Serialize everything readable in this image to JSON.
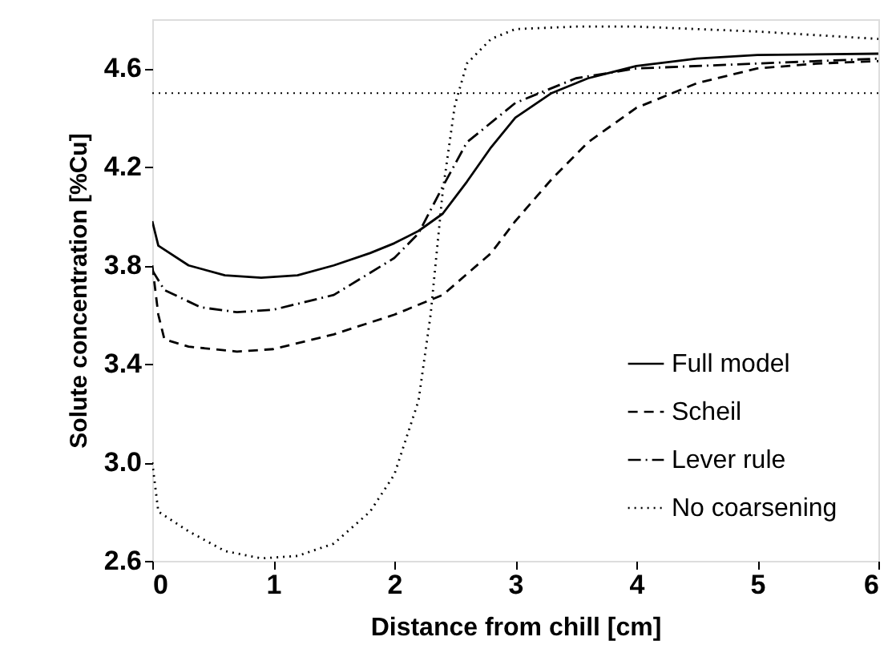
{
  "chart_data": {
    "type": "line",
    "xlabel": "Distance from chill  [cm]",
    "ylabel": "Solute concentration [%Cu]",
    "xlim": [
      0,
      6
    ],
    "xticks": [
      0,
      1,
      2,
      3,
      4,
      5,
      6
    ],
    "ylim": [
      2.6,
      4.8
    ],
    "yticks": [
      2.6,
      {
        "value": 3.0,
        "label": "3.0"
      },
      3.4,
      3.8,
      4.2,
      4.6
    ],
    "legend": "bottom right",
    "grid": false,
    "ref_lines": [
      {
        "axis": "y",
        "value": 4.5,
        "line_style": "dotted",
        "color": "#000000"
      }
    ],
    "series": [
      {
        "name": "Full model",
        "color": "#000000",
        "line_style": "solid",
        "x": [
          0,
          0.05,
          0.3,
          0.6,
          0.9,
          1.2,
          1.5,
          1.8,
          2.0,
          2.2,
          2.4,
          2.6,
          2.8,
          3.0,
          3.3,
          3.6,
          4.0,
          4.5,
          5.0,
          6.0
        ],
        "values": [
          3.98,
          3.88,
          3.8,
          3.76,
          3.75,
          3.76,
          3.8,
          3.85,
          3.89,
          3.94,
          4.01,
          4.14,
          4.28,
          4.4,
          4.5,
          4.56,
          4.61,
          4.64,
          4.655,
          4.66
        ]
      },
      {
        "name": "Scheil",
        "color": "#000000",
        "line_style": "dashed",
        "x": [
          0,
          0.05,
          0.1,
          0.3,
          0.7,
          1.0,
          1.5,
          2.0,
          2.4,
          2.8,
          3.0,
          3.3,
          3.6,
          4.0,
          4.5,
          5.0,
          5.5,
          6.0
        ],
        "values": [
          3.8,
          3.6,
          3.5,
          3.47,
          3.45,
          3.46,
          3.52,
          3.6,
          3.68,
          3.85,
          3.98,
          4.15,
          4.3,
          4.44,
          4.54,
          4.6,
          4.62,
          4.63
        ]
      },
      {
        "name": "Lever rule",
        "color": "#000000",
        "line_style": "dashdot",
        "x": [
          0,
          0.1,
          0.4,
          0.7,
          1.0,
          1.5,
          2.0,
          2.2,
          2.4,
          2.6,
          3.0,
          3.5,
          4.0,
          5.0,
          6.0
        ],
        "values": [
          3.78,
          3.7,
          3.63,
          3.61,
          3.62,
          3.68,
          3.83,
          3.93,
          4.12,
          4.3,
          4.46,
          4.56,
          4.6,
          4.62,
          4.64
        ]
      },
      {
        "name": "No coarsening",
        "color": "#000000",
        "line_style": "dotted",
        "x": [
          0,
          0.05,
          0.3,
          0.6,
          0.9,
          1.2,
          1.5,
          1.8,
          2.0,
          2.2,
          2.3,
          2.4,
          2.5,
          2.6,
          2.8,
          3.0,
          3.5,
          4.0,
          5.0,
          6.0
        ],
        "values": [
          3.0,
          2.8,
          2.72,
          2.64,
          2.61,
          2.62,
          2.67,
          2.8,
          2.95,
          3.25,
          3.6,
          4.1,
          4.45,
          4.62,
          4.72,
          4.76,
          4.77,
          4.77,
          4.75,
          4.72
        ]
      }
    ]
  }
}
